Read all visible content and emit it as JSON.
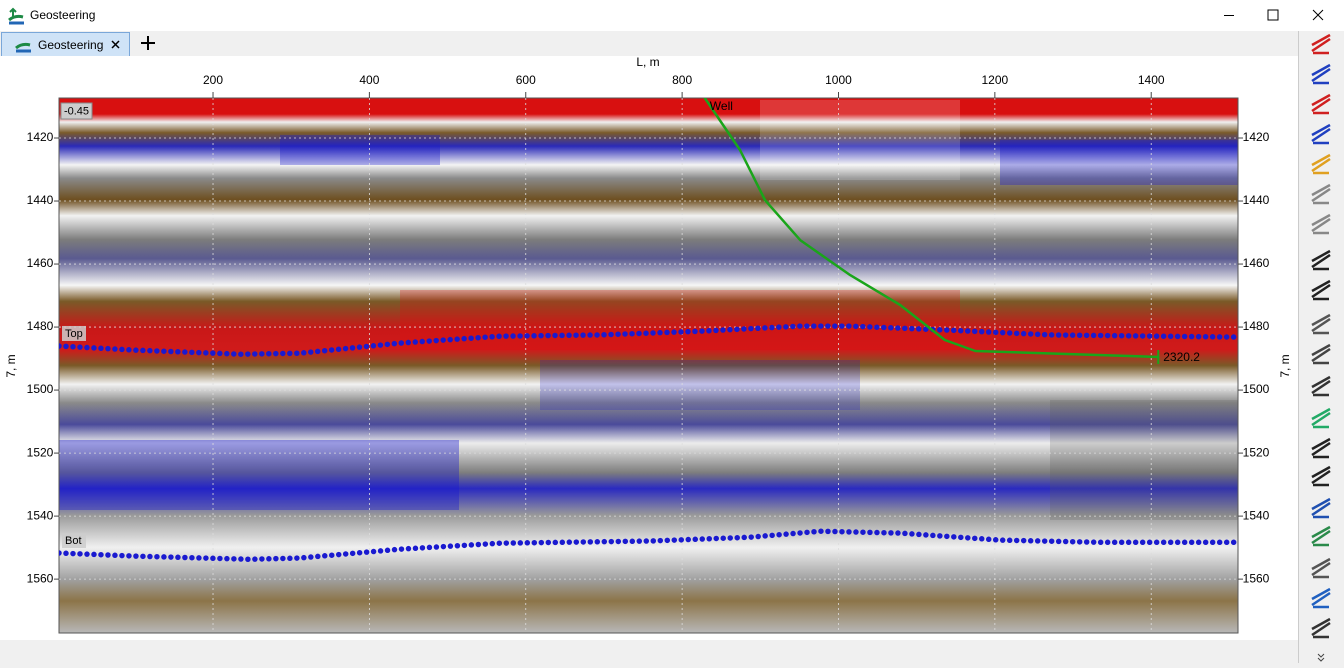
{
  "window": {
    "title": "Geosteering"
  },
  "tabs": [
    {
      "label": "Geosteering"
    }
  ],
  "chart_data": {
    "type": "line",
    "xlabel": "L, m",
    "ylabel": "7, m",
    "corner_label": "-0.45",
    "xlim": [
      3,
      1511
    ],
    "ylim": [
      1407.3,
      1577.1
    ],
    "y_inverted": true,
    "xticks": [
      200,
      400,
      600,
      800,
      1000,
      1200,
      1400
    ],
    "yticks": [
      1420,
      1440,
      1460,
      1480,
      1500,
      1520,
      1540,
      1560
    ],
    "grid": true,
    "series": [
      {
        "name": "Top",
        "color": "#1a1ad0",
        "style": "dots",
        "x": [
          3,
          100,
          235,
          311,
          439,
          567,
          695,
          823,
          951,
          1015,
          1143,
          1271,
          1511
        ],
        "values": [
          1486,
          1487.3,
          1488.6,
          1488.3,
          1485.1,
          1482.9,
          1482.5,
          1481.3,
          1479.7,
          1479.7,
          1481,
          1482.5,
          1483.2
        ]
      },
      {
        "name": "Bot",
        "color": "#1a1ad0",
        "style": "dots",
        "x": [
          3,
          100,
          247,
          311,
          439,
          567,
          759,
          887,
          977,
          1079,
          1207,
          1335,
          1511
        ],
        "values": [
          1551.7,
          1552.7,
          1553.7,
          1553.3,
          1550.5,
          1548.6,
          1547.9,
          1546.7,
          1544.8,
          1545.4,
          1547.6,
          1548.3,
          1548.3
        ]
      },
      {
        "name": "Well",
        "color": "#1aa51a",
        "style": "line",
        "end_label": "2320.2",
        "x": [
          829,
          874,
          906,
          951,
          1015,
          1079,
          1136,
          1175,
          1409
        ],
        "values": [
          1407.3,
          1423.8,
          1439.7,
          1452.4,
          1463.5,
          1473,
          1484.1,
          1487.6,
          1489.5
        ]
      }
    ]
  }
}
